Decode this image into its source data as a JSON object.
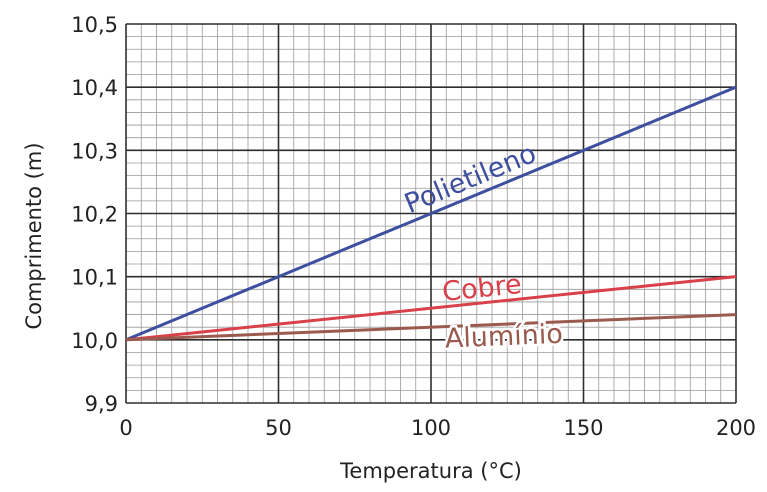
{
  "chart_data": {
    "type": "line",
    "title": "",
    "xlabel": "Temperatura (°C)",
    "ylabel": "Comprimento (m)",
    "xlim": [
      0,
      200
    ],
    "ylim": [
      9.9,
      10.5
    ],
    "x_ticks": [
      "0",
      "50",
      "100",
      "150",
      "200"
    ],
    "y_ticks": [
      "9,9",
      "10,0",
      "10,1",
      "10,2",
      "10,3",
      "10,4",
      "10,5"
    ],
    "grid": true,
    "series": [
      {
        "name": "Polietileno",
        "x": [
          0,
          200
        ],
        "y": [
          10.0,
          10.4
        ],
        "color": "#3d4f9f"
      },
      {
        "name": "Cobre",
        "x": [
          0,
          200
        ],
        "y": [
          10.0,
          10.1
        ],
        "color": "#d9404a"
      },
      {
        "name": "Alumínio",
        "x": [
          0,
          200
        ],
        "y": [
          10.0,
          10.04
        ],
        "color": "#9a5a4e"
      }
    ]
  }
}
